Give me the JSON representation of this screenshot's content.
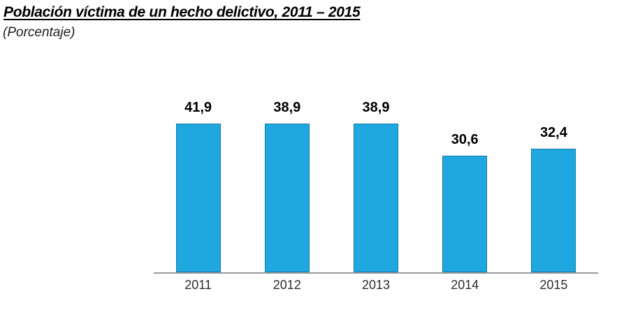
{
  "page": {
    "title": "Población víctima de un hecho delictivo, 2011 – 2015",
    "subtitle": "(Porcentaje)"
  },
  "chart_data": {
    "type": "bar",
    "title": "Población víctima de un hecho delictivo, 2011 – 2015",
    "subtitle": "(Porcentaje)",
    "categories": [
      "2011",
      "2012",
      "2013",
      "2014",
      "2015"
    ],
    "values": [
      41.9,
      38.9,
      38.9,
      30.6,
      32.4
    ],
    "value_labels": [
      "41,9",
      "38,9",
      "38,9",
      "30,6",
      "32,4"
    ],
    "xlabel": "",
    "ylabel": "",
    "ylim": [
      0,
      45
    ],
    "grid": false,
    "legend": false,
    "data_labels_shown": true,
    "decimal_separator": ",",
    "colors": {
      "bar_fill": "#1FA8E0",
      "bar_border": "#1578A8",
      "axis_line": "#9A9A9A",
      "value_label": "#000000",
      "tick_label": "#2E2E2E",
      "title": "#000000",
      "subtitle": "#1F1F1F"
    }
  }
}
